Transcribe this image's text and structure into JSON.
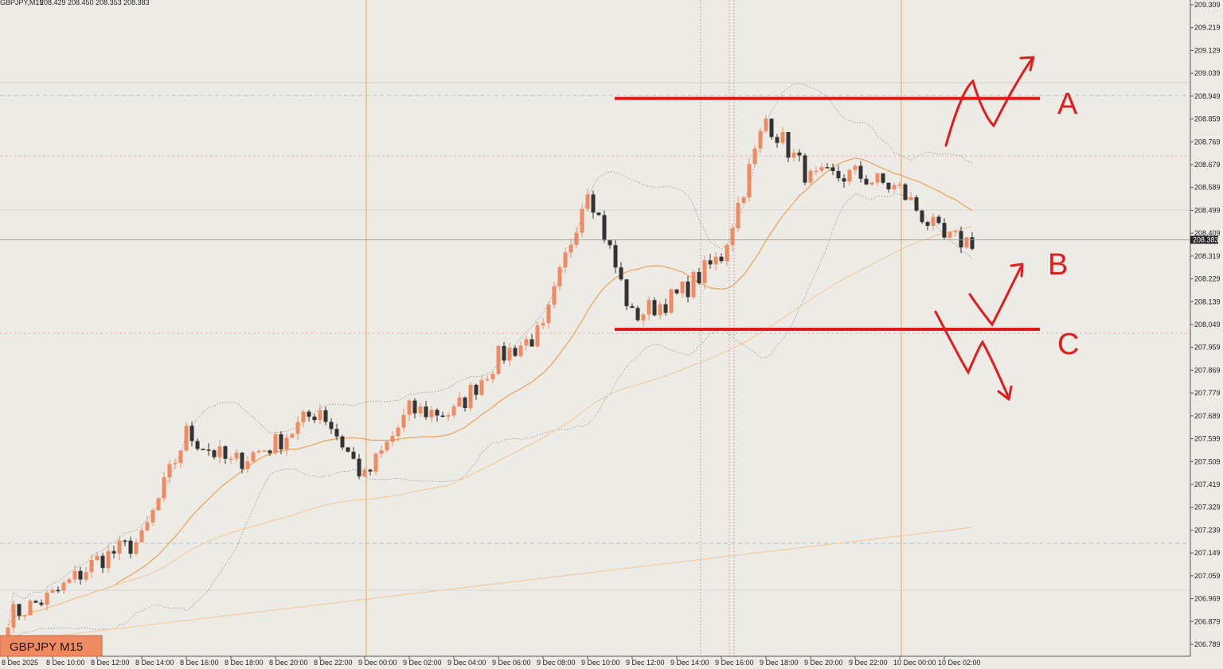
{
  "header": {
    "symbol_line": "GBPJPY,M15",
    "ohlc_line": "208.429 208.450 208.353 208.383"
  },
  "badge": {
    "label": "GBPJPY M15"
  },
  "current_price": "208.383",
  "colors": {
    "background": "#ecebe6",
    "bull_candle": "#f08a61",
    "bear_candle": "#333333",
    "ma_fast": "#f0a055",
    "ma_slow": "#f3c99a",
    "bollinger": "#9a9a9a",
    "annotation": "#e31b1b",
    "session_line": "#f0a040"
  },
  "chart_data": {
    "type": "candlestick",
    "symbol": "GBPJPY",
    "timeframe": "M15",
    "ylim": [
      206.75,
      209.33
    ],
    "y_ticks": [
      "209.309",
      "209.219",
      "209.129",
      "209.039",
      "208.949",
      "208.859",
      "208.769",
      "208.679",
      "208.589",
      "208.499",
      "208.409",
      "208.319",
      "208.229",
      "208.139",
      "208.049",
      "207.959",
      "207.869",
      "207.779",
      "207.689",
      "207.599",
      "207.509",
      "207.419",
      "207.329",
      "207.239",
      "207.149",
      "207.059",
      "206.969",
      "206.879",
      "206.789"
    ],
    "x_ticks": [
      "8 Dec 2025",
      "8 Dec 10:00",
      "8 Dec 12:00",
      "8 Dec 14:00",
      "8 Dec 16:00",
      "8 Dec 18:00",
      "8 Dec 20:00",
      "8 Dec 22:00",
      "9 Dec 00:00",
      "9 Dec 02:00",
      "9 Dec 04:00",
      "9 Dec 06:00",
      "9 Dec 08:00",
      "9 Dec 10:00",
      "9 Dec 12:00",
      "9 Dec 14:00",
      "9 Dec 16:00",
      "9 Dec 18:00",
      "9 Dec 20:00",
      "9 Dec 22:00",
      "10 Dec 00:00",
      "10 Dec 02:00"
    ],
    "session_lines_at": [
      "9 Dec 00:00",
      "10 Dec 00:00"
    ],
    "price_path": [
      [
        "8 Dec 2025",
        206.9
      ],
      [
        "8 Dec 10:00",
        206.98
      ],
      [
        "8 Dec 12:00",
        207.12
      ],
      [
        "8 Dec 14:00",
        207.2
      ],
      [
        "8 Dec 16:00",
        207.62
      ],
      [
        "8 Dec 18:00",
        207.5
      ],
      [
        "8 Dec 20:00",
        207.58
      ],
      [
        "8 Dec 22:00",
        207.72
      ],
      [
        "9 Dec 00:00",
        207.44
      ],
      [
        "9 Dec 02:00",
        207.71
      ],
      [
        "9 Dec 04:00",
        207.7
      ],
      [
        "9 Dec 06:00",
        207.92
      ],
      [
        "9 Dec 08:00",
        208.02
      ],
      [
        "9 Dec 10:00",
        208.6
      ],
      [
        "9 Dec 12:00",
        208.08
      ],
      [
        "9 Dec 14:00",
        208.16
      ],
      [
        "9 Dec 16:00",
        208.32
      ],
      [
        "9 Dec 18:00",
        208.86
      ],
      [
        "9 Dec 20:00",
        208.62
      ],
      [
        "9 Dec 22:00",
        208.64
      ],
      [
        "10 Dec 00:00",
        208.58
      ],
      [
        "10 Dec 02:00",
        208.38
      ]
    ],
    "levels": [
      {
        "label": "A",
        "price": 208.94
      },
      {
        "label": "C",
        "price": 208.03
      }
    ],
    "annotations": [
      {
        "label": "A",
        "meaning": "breakout above level"
      },
      {
        "label": "B",
        "meaning": "bounce off lower level"
      },
      {
        "label": "C",
        "meaning": "breakdown below level"
      }
    ]
  }
}
